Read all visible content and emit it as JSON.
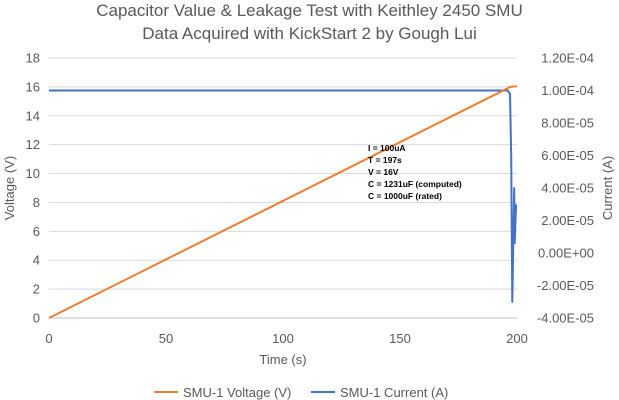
{
  "chart_data": {
    "type": "line",
    "title_lines": [
      "Capacitor Value & Leakage Test with Keithley 2450 SMU",
      "Data Acquired with KickStart 2 by Gough Lui"
    ],
    "xlabel": "Time (s)",
    "ylabel": "Voltage (V)",
    "y2label": "Current (A)",
    "xlim": [
      0,
      200
    ],
    "ylim": [
      0,
      18
    ],
    "y2lim": [
      -4e-05,
      0.00012
    ],
    "x_ticks": [
      0,
      50,
      100,
      150,
      200
    ],
    "y_ticks": [
      0,
      2,
      4,
      6,
      8,
      10,
      12,
      14,
      16,
      18
    ],
    "y2_ticks": [
      "-4.00E-05",
      "-2.00E-05",
      "0.00E+00",
      "2.00E-05",
      "4.00E-05",
      "6.00E-05",
      "8.00E-05",
      "1.00E-04",
      "1.20E-04"
    ],
    "y2_tick_values": [
      -4e-05,
      -2e-05,
      0,
      2e-05,
      4e-05,
      6e-05,
      8e-05,
      0.0001,
      0.00012
    ],
    "grid": true,
    "legend_position": "bottom",
    "series": [
      {
        "name": "SMU-1 Voltage (V)",
        "axis": "left",
        "color": "#ed7d31",
        "points": [
          [
            0,
            0
          ],
          [
            196,
            15.9
          ],
          [
            197,
            16.0
          ],
          [
            200,
            16.05
          ]
        ]
      },
      {
        "name": "SMU-1 Current (A)",
        "axis": "right",
        "color": "#4472c4",
        "points": [
          [
            0,
            0.0001
          ],
          [
            196,
            0.0001
          ],
          [
            197,
            9.8e-05
          ],
          [
            197.5,
            6e-05
          ],
          [
            198,
            -3e-05
          ],
          [
            198.8,
            4e-05
          ],
          [
            199,
            6e-06
          ],
          [
            199.6,
            3e-05
          ]
        ]
      }
    ],
    "annotation_lines": [
      "I = 100uA",
      "T = 197s",
      "V = 16V",
      "C = 1231uF (computed)",
      "C = 1000uF (rated)"
    ]
  }
}
